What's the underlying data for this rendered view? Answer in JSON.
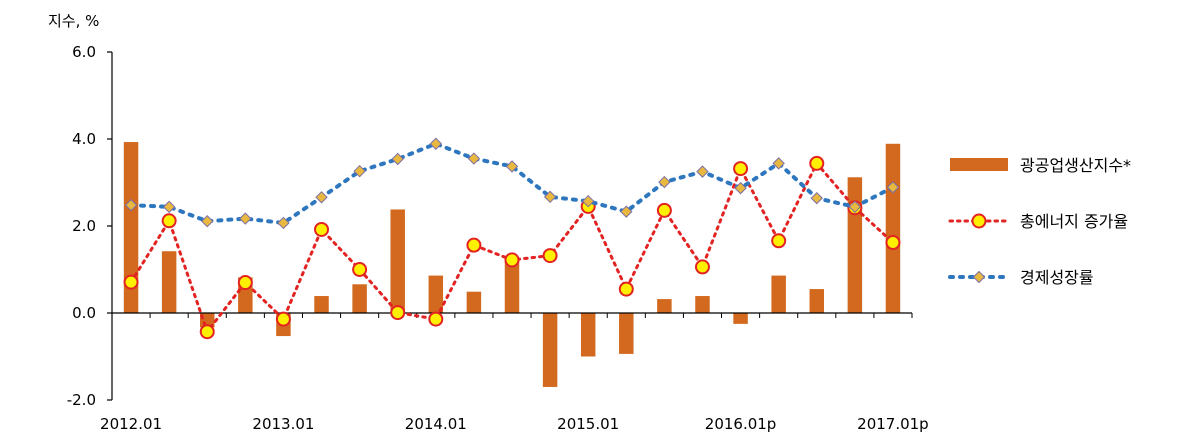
{
  "chart_data": {
    "type": "bar",
    "unit_label": "지수, %",
    "ylim": [
      -2.0,
      6.0
    ],
    "yticks": [
      "6.0",
      "4.0",
      "2.0",
      "0.0",
      "-2.0"
    ],
    "ytick_values": [
      6,
      4,
      2,
      0,
      -2
    ],
    "xtick_labels": [
      "2012.01",
      "2013.01",
      "2014.01",
      "2015.01",
      "2016.01p",
      "2017.01p"
    ],
    "xtick_index": [
      0,
      4,
      8,
      12,
      16,
      20
    ],
    "grid": false,
    "legend_position": "right",
    "series": [
      {
        "name": "광공업생산지수*",
        "kind": "bar",
        "color": "#D2691E",
        "values": [
          3.93,
          1.42,
          -0.33,
          0.82,
          -0.53,
          0.39,
          0.66,
          2.38,
          0.86,
          0.49,
          1.25,
          -1.7,
          -1.0,
          -0.94,
          0.32,
          0.39,
          -0.25,
          0.86,
          0.55,
          3.12,
          3.89
        ]
      },
      {
        "name": "총에너지 증가율",
        "kind": "line",
        "color": "#E32222",
        "marker_fill": "#FFEF00",
        "values": [
          0.71,
          2.12,
          -0.43,
          0.7,
          -0.14,
          1.92,
          1.0,
          0.01,
          -0.14,
          1.56,
          1.22,
          1.32,
          2.45,
          0.55,
          2.36,
          1.06,
          3.32,
          1.66,
          3.44,
          2.42,
          1.62
        ]
      },
      {
        "name": "경제성장률",
        "kind": "line",
        "color": "#2E77BE",
        "marker_fill": "#E9B83E",
        "values": [
          2.48,
          2.44,
          2.11,
          2.17,
          2.07,
          2.66,
          3.26,
          3.54,
          3.89,
          3.55,
          3.37,
          2.67,
          2.57,
          2.33,
          3.01,
          3.25,
          2.87,
          3.44,
          2.64,
          2.44,
          2.89
        ]
      }
    ]
  }
}
